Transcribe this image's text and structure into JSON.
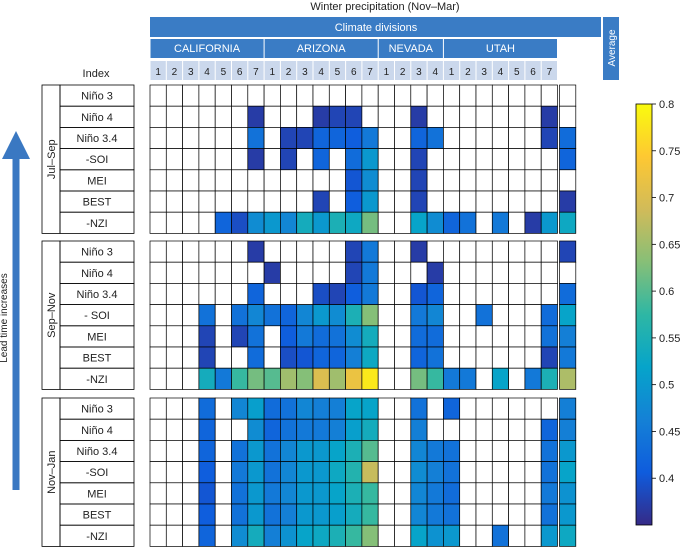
{
  "header": {
    "title": "Winter precipitation (Nov–Mar)",
    "climate_divisions": "Climate divisions",
    "average": "Average",
    "index_label": "Index",
    "lead_time": "Lead time increases"
  },
  "colors": {
    "header_blue": "#3a7cc5",
    "subheader_blue": "#cbd8ec",
    "arrow_blue": "#3a78c2",
    "grid_line": "#000000"
  },
  "chart_data": {
    "type": "heatmap",
    "title": "Winter precipitation (Nov–Mar)",
    "states": [
      {
        "name": "CALIFORNIA",
        "divisions": [
          "1",
          "2",
          "3",
          "4",
          "5",
          "6",
          "7"
        ]
      },
      {
        "name": "ARIZONA",
        "divisions": [
          "1",
          "2",
          "3",
          "4",
          "5",
          "6",
          "7"
        ]
      },
      {
        "name": "NEVADA",
        "divisions": [
          "1",
          "2",
          "3",
          "4"
        ]
      },
      {
        "name": "UTAH",
        "divisions": [
          "1",
          "2",
          "3",
          "4",
          "5",
          "6",
          "7"
        ]
      }
    ],
    "colorbar": {
      "min": 0.35,
      "max": 0.8,
      "ticks": [
        0.4,
        0.45,
        0.5,
        0.55,
        0.6,
        0.65,
        0.7,
        0.75,
        0.8
      ]
    },
    "groups": [
      {
        "name": "Jul–Sep",
        "rows": [
          {
            "index": "Niño 3",
            "values": [
              null,
              null,
              null,
              null,
              null,
              null,
              null,
              null,
              null,
              null,
              null,
              null,
              null,
              null,
              null,
              null,
              null,
              null,
              null,
              null,
              null,
              null,
              null,
              null,
              null,
              null
            ]
          },
          {
            "index": "Niño 4",
            "values": [
              null,
              null,
              null,
              null,
              null,
              null,
              0.37,
              null,
              null,
              null,
              0.37,
              0.38,
              0.38,
              null,
              null,
              null,
              0.37,
              null,
              null,
              null,
              null,
              null,
              null,
              null,
              0.37,
              null
            ]
          },
          {
            "index": "Niño 3.4",
            "values": [
              null,
              null,
              null,
              null,
              null,
              null,
              0.44,
              null,
              0.38,
              0.38,
              0.42,
              0.42,
              0.41,
              0.45,
              null,
              null,
              0.42,
              0.44,
              null,
              null,
              null,
              null,
              null,
              null,
              0.38,
              0.43
            ]
          },
          {
            "index": "-SOI",
            "values": [
              null,
              null,
              null,
              null,
              null,
              null,
              0.37,
              null,
              0.38,
              null,
              0.42,
              null,
              0.43,
              0.5,
              null,
              null,
              0.38,
              null,
              null,
              null,
              null,
              null,
              null,
              null,
              null,
              0.42
            ]
          },
          {
            "index": "MEI",
            "values": [
              null,
              null,
              null,
              null,
              null,
              null,
              null,
              null,
              null,
              null,
              null,
              null,
              0.4,
              0.48,
              null,
              null,
              0.38,
              null,
              null,
              null,
              null,
              null,
              null,
              null,
              null,
              null
            ]
          },
          {
            "index": "BEST",
            "values": [
              null,
              null,
              null,
              null,
              null,
              null,
              null,
              null,
              null,
              null,
              0.38,
              null,
              0.41,
              0.5,
              null,
              null,
              0.38,
              null,
              null,
              null,
              null,
              null,
              null,
              null,
              null,
              0.37
            ]
          },
          {
            "index": "-NZI",
            "values": [
              null,
              null,
              null,
              null,
              0.42,
              0.39,
              0.48,
              0.5,
              0.47,
              0.54,
              0.5,
              0.55,
              0.53,
              0.62,
              null,
              null,
              0.52,
              0.48,
              0.42,
              0.44,
              null,
              0.45,
              null,
              0.37,
              0.5,
              0.53
            ]
          }
        ]
      },
      {
        "name": "Sep–Nov",
        "rows": [
          {
            "index": "Niño 3",
            "values": [
              null,
              null,
              null,
              null,
              null,
              null,
              0.37,
              null,
              null,
              null,
              null,
              null,
              0.38,
              0.45,
              null,
              null,
              0.37,
              null,
              null,
              null,
              null,
              null,
              null,
              null,
              null,
              0.38
            ]
          },
          {
            "index": "Niño 4",
            "values": [
              null,
              null,
              null,
              null,
              null,
              null,
              null,
              0.37,
              null,
              null,
              null,
              null,
              0.38,
              0.45,
              null,
              null,
              null,
              0.37,
              null,
              null,
              null,
              null,
              null,
              null,
              null,
              null
            ]
          },
          {
            "index": "Niño 3.4",
            "values": [
              null,
              null,
              null,
              null,
              null,
              null,
              0.42,
              null,
              null,
              null,
              0.39,
              0.38,
              0.41,
              0.45,
              null,
              null,
              0.4,
              0.42,
              null,
              null,
              null,
              null,
              null,
              null,
              null,
              0.43
            ]
          },
          {
            "index": "- SOI",
            "values": [
              null,
              null,
              null,
              0.44,
              null,
              0.44,
              0.47,
              0.44,
              0.42,
              0.47,
              0.5,
              0.48,
              0.55,
              0.63,
              null,
              null,
              0.45,
              0.47,
              null,
              null,
              0.44,
              null,
              null,
              null,
              0.43,
              0.52
            ]
          },
          {
            "index": "MEI",
            "values": [
              null,
              null,
              null,
              0.38,
              null,
              0.38,
              0.44,
              null,
              0.41,
              0.45,
              0.43,
              0.44,
              0.48,
              0.54,
              null,
              null,
              0.43,
              0.43,
              null,
              null,
              null,
              null,
              null,
              null,
              0.44,
              0.46
            ]
          },
          {
            "index": "BEST",
            "values": [
              null,
              null,
              null,
              0.38,
              null,
              null,
              0.43,
              null,
              0.39,
              0.4,
              0.42,
              0.42,
              0.46,
              0.53,
              null,
              null,
              0.42,
              0.44,
              null,
              null,
              null,
              null,
              null,
              null,
              0.38,
              0.45
            ]
          },
          {
            "index": "-NZI",
            "values": [
              null,
              null,
              null,
              0.54,
              0.45,
              0.58,
              0.62,
              0.6,
              0.65,
              0.63,
              0.7,
              0.65,
              0.72,
              0.78,
              null,
              null,
              0.62,
              0.58,
              0.45,
              0.45,
              null,
              0.52,
              null,
              0.45,
              0.55,
              0.66
            ]
          }
        ]
      },
      {
        "name": "Nov–Jan",
        "rows": [
          {
            "index": "Niño 3",
            "values": [
              null,
              null,
              null,
              0.43,
              null,
              0.47,
              0.51,
              0.43,
              0.44,
              0.47,
              0.46,
              0.46,
              0.52,
              0.52,
              null,
              null,
              0.44,
              null,
              0.42,
              null,
              null,
              null,
              null,
              null,
              null,
              0.46
            ]
          },
          {
            "index": "Niño 4",
            "values": [
              null,
              null,
              null,
              0.42,
              null,
              null,
              0.48,
              0.42,
              0.44,
              0.45,
              0.45,
              0.46,
              0.51,
              0.54,
              null,
              null,
              0.46,
              null,
              null,
              null,
              null,
              null,
              null,
              null,
              0.42,
              0.46
            ]
          },
          {
            "index": "Niño 3.4",
            "values": [
              null,
              null,
              null,
              0.42,
              null,
              0.44,
              0.5,
              0.44,
              0.47,
              0.5,
              0.5,
              0.52,
              0.55,
              0.6,
              null,
              null,
              0.47,
              0.45,
              0.44,
              null,
              null,
              null,
              null,
              null,
              0.44,
              0.5
            ]
          },
          {
            "index": "-SOI",
            "values": [
              null,
              null,
              null,
              0.41,
              null,
              0.45,
              0.5,
              0.44,
              0.47,
              0.5,
              0.5,
              0.53,
              0.56,
              0.68,
              null,
              null,
              0.48,
              0.46,
              0.44,
              null,
              null,
              null,
              null,
              null,
              0.44,
              0.52
            ]
          },
          {
            "index": "MEI",
            "values": [
              null,
              null,
              null,
              0.4,
              null,
              0.44,
              0.5,
              0.45,
              0.47,
              0.5,
              0.5,
              0.52,
              0.55,
              0.58,
              null,
              null,
              0.47,
              0.45,
              0.43,
              null,
              null,
              null,
              null,
              null,
              0.45,
              0.49
            ]
          },
          {
            "index": "BEST",
            "values": [
              null,
              null,
              null,
              0.41,
              null,
              0.44,
              0.5,
              0.44,
              0.46,
              0.5,
              0.5,
              0.51,
              0.54,
              0.58,
              null,
              null,
              0.47,
              0.45,
              0.44,
              null,
              null,
              null,
              null,
              null,
              0.44,
              0.5
            ]
          },
          {
            "index": "-NZI",
            "values": [
              null,
              null,
              null,
              0.42,
              null,
              0.48,
              0.54,
              0.46,
              0.49,
              0.52,
              0.53,
              0.55,
              0.58,
              0.63,
              null,
              null,
              0.52,
              0.49,
              0.5,
              null,
              null,
              0.44,
              null,
              null,
              0.5,
              0.53
            ]
          }
        ]
      }
    ]
  }
}
